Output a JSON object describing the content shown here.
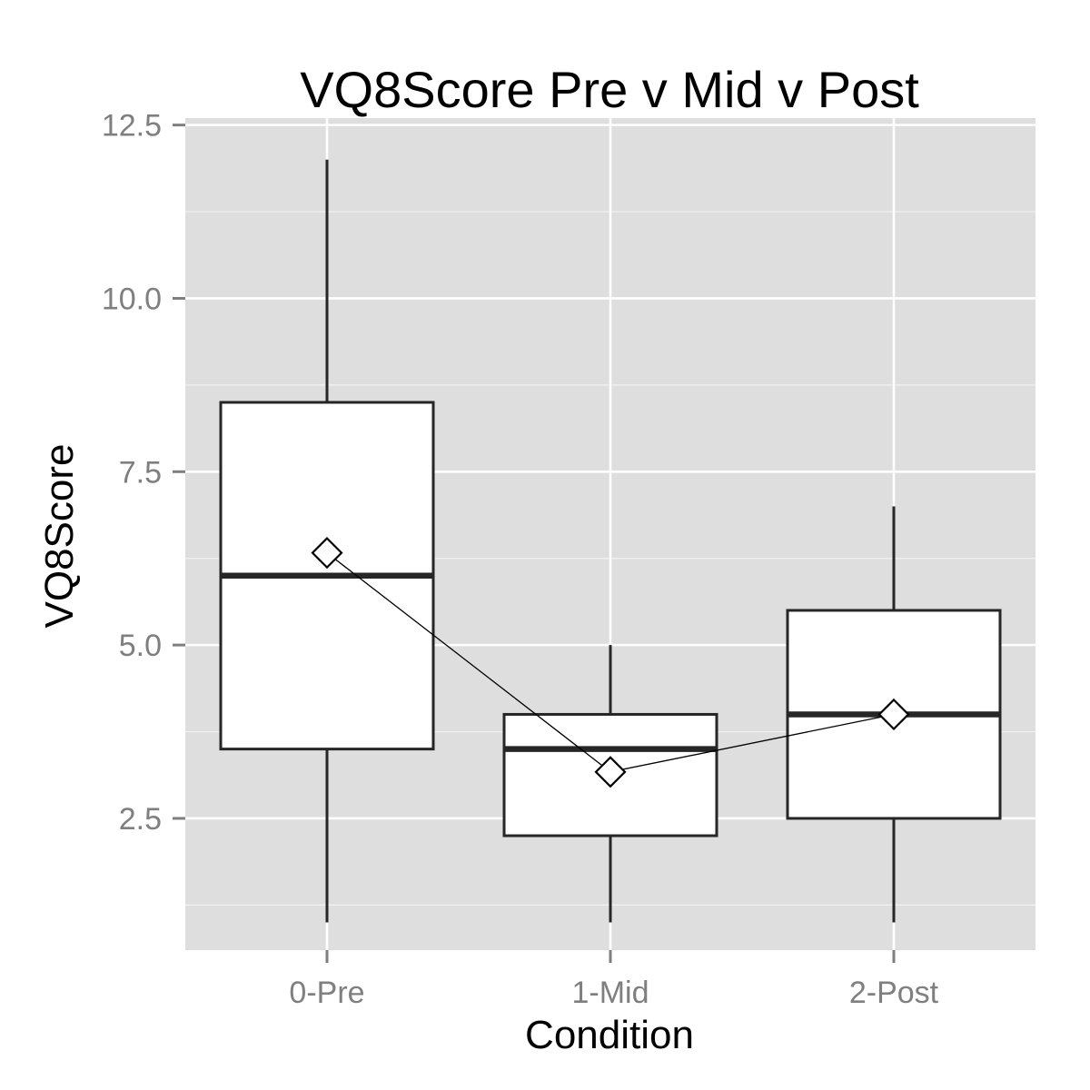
{
  "chart_data": {
    "type": "boxplot",
    "title": "VQ8Score Pre v Mid v Post",
    "xlabel": "Condition",
    "ylabel": "VQ8Score",
    "categories": [
      "0-Pre",
      "1-Mid",
      "2-Post"
    ],
    "ylim": [
      0.6,
      12.6
    ],
    "yticks": [
      2.5,
      5.0,
      7.5,
      10.0,
      12.5
    ],
    "ytick_labels": [
      "2.5",
      "5.0",
      "7.5",
      "10.0",
      "12.5"
    ],
    "boxes": [
      {
        "category": "0-Pre",
        "min": 1.0,
        "q1": 3.5,
        "median": 6.0,
        "q3": 8.5,
        "max": 12.0,
        "mean": 6.33
      },
      {
        "category": "1-Mid",
        "min": 1.0,
        "q1": 2.25,
        "median": 3.5,
        "q3": 4.0,
        "max": 5.0,
        "mean": 3.17
      },
      {
        "category": "2-Post",
        "min": 1.0,
        "q1": 2.5,
        "median": 4.0,
        "q3": 5.5,
        "max": 7.0,
        "mean": 4.0
      }
    ],
    "mean_line": true,
    "grid": true,
    "colors": {
      "panel_bg": "#dedede",
      "grid": "#ffffff",
      "box_fill": "#ffffff",
      "box_stroke": "#262626",
      "tick": "#7f7f7f"
    }
  }
}
